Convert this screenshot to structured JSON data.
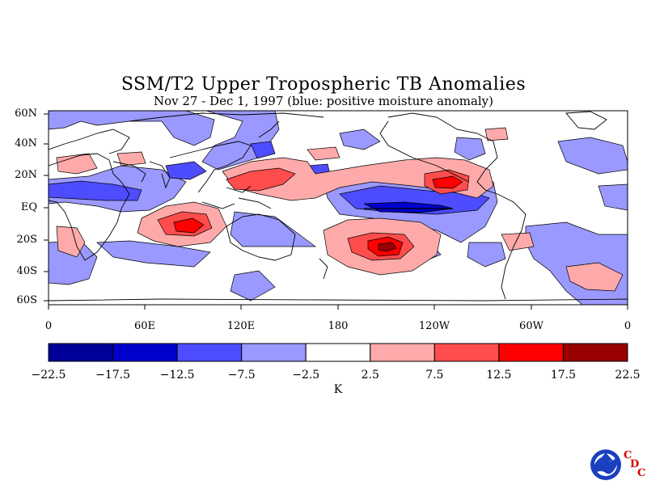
{
  "title": "SSM/T2 Upper Tropospheric TB Anomalies",
  "subtitle": "Nov 27 - Dec 1, 1997 (blue: positive moisture anomaly)",
  "lat_labels": [
    "60N",
    "40N",
    "20N",
    "EQ",
    "20S",
    "40S",
    "60S"
  ],
  "lon_labels": [
    "0",
    "60E",
    "120E",
    "180",
    "120W",
    "60W",
    "0"
  ],
  "colorbar": {
    "ticks": [
      "−22.5",
      "−17.5",
      "−12.5",
      "−7.5",
      "−2.5",
      "2.5",
      "7.5",
      "12.5",
      "17.5",
      "22.5"
    ],
    "colors": [
      "#000099",
      "#0000cc",
      "#4d4dff",
      "#9999ff",
      "#ffffff",
      "#ffaaaa",
      "#ff4d4d",
      "#ff0000",
      "#990000"
    ],
    "unit": "K"
  },
  "logo": {
    "name": "noaa-logo",
    "letters": [
      "C",
      "D",
      "C"
    ]
  }
}
